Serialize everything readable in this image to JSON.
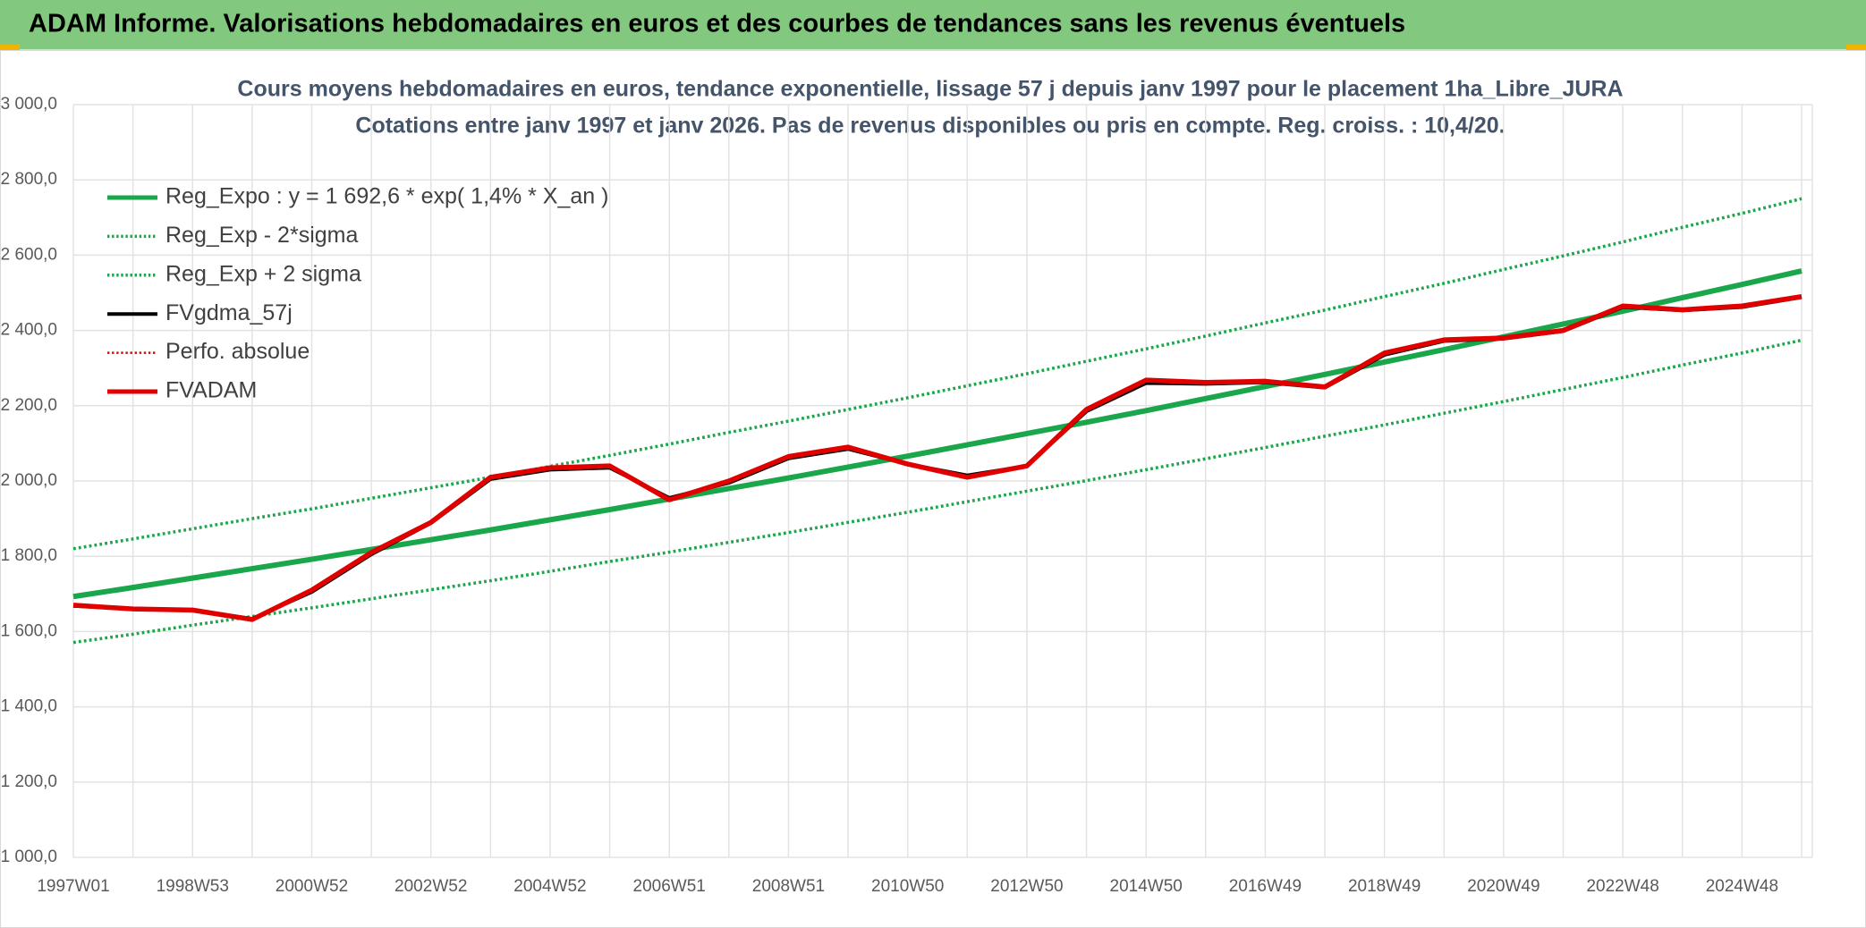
{
  "header": {
    "title": "ADAM Informe. Valorisations hebdomadaires en euros et des courbes de tendances sans les revenus éventuels"
  },
  "chart_data": {
    "type": "line",
    "title": "Cours moyens hebdomadaires en euros, tendance exponentielle, lissage 57 j depuis janv 1997 pour le placement 1ha_Libre_JURA",
    "subtitle": "Cotations entre janv 1997 et janv 2026. Pas de revenus disponibles ou pris en compte. Reg. croiss. : 10,4/20.",
    "categories": [
      "1997W01",
      null,
      "1998W53",
      null,
      "2000W52",
      null,
      "2002W52",
      null,
      "2004W52",
      null,
      "2006W51",
      null,
      "2008W51",
      null,
      "2010W50",
      null,
      "2012W50",
      null,
      "2014W50",
      null,
      "2016W49",
      null,
      "2018W49",
      null,
      "2020W49",
      null,
      "2022W48",
      null,
      "2024W48",
      null
    ],
    "series": [
      {
        "name": "Reg_Expo : y = 1 692,6 * exp( 1,4% *  X_an )",
        "color": "#1aa64a",
        "style": "solid",
        "values": [
          1693,
          1717,
          1742,
          1767,
          1792,
          1818,
          1844,
          1870,
          1897,
          1924,
          1952,
          1980,
          2008,
          2037,
          2066,
          2096,
          2126,
          2156,
          2187,
          2219,
          2251,
          2283,
          2316,
          2349,
          2383,
          2417,
          2451,
          2487,
          2522,
          2558
        ]
      },
      {
        "name": "Reg_Exp - 2*sigma",
        "color": "#1aa64a",
        "style": "dotted",
        "values": [
          1571,
          1593,
          1617,
          1640,
          1663,
          1687,
          1711,
          1735,
          1760,
          1786,
          1811,
          1837,
          1863,
          1890,
          1917,
          1945,
          1973,
          2001,
          2030,
          2059,
          2089,
          2119,
          2149,
          2180,
          2211,
          2243,
          2275,
          2308,
          2340,
          2374
        ]
      },
      {
        "name": "Reg_Exp + 2 sigma",
        "color": "#1aa64a",
        "style": "dotted",
        "values": [
          1820,
          1846,
          1873,
          1900,
          1926,
          1954,
          1982,
          2010,
          2039,
          2068,
          2098,
          2129,
          2159,
          2190,
          2221,
          2253,
          2285,
          2318,
          2351,
          2385,
          2420,
          2454,
          2490,
          2525,
          2562,
          2598,
          2635,
          2674,
          2711,
          2750
        ]
      },
      {
        "name": "FVgdma_57j",
        "color": "#000000",
        "style": "solid",
        "values": [
          1668,
          1660,
          1657,
          1634,
          1705,
          1805,
          1888,
          2005,
          2030,
          2035,
          1955,
          1995,
          2060,
          2085,
          2045,
          2015,
          2040,
          2185,
          2260,
          2258,
          2262,
          2248,
          2335,
          2372,
          2378,
          2398,
          2462,
          2453,
          2462,
          2488
        ]
      },
      {
        "name": "Perfo. absolue",
        "color": "#e00000",
        "style": "dotted",
        "values": [
          1670,
          1660,
          1657,
          1632,
          1710,
          1810,
          1890,
          2010,
          2035,
          2040,
          1950,
          2000,
          2065,
          2090,
          2045,
          2010,
          2040,
          2190,
          2268,
          2262,
          2265,
          2250,
          2340,
          2375,
          2380,
          2400,
          2465,
          2455,
          2465,
          2490
        ]
      },
      {
        "name": "FVADAM",
        "color": "#e00000",
        "style": "solid",
        "values": [
          1670,
          1660,
          1657,
          1632,
          1710,
          1810,
          1890,
          2010,
          2035,
          2040,
          1950,
          2000,
          2065,
          2090,
          2045,
          2010,
          2040,
          2190,
          2268,
          2262,
          2265,
          2250,
          2340,
          2375,
          2380,
          2400,
          2465,
          2455,
          2465,
          2490
        ]
      }
    ],
    "ylim": [
      1000,
      3000
    ],
    "yticks": [
      {
        "value": 1000,
        "label": "1 000,0"
      },
      {
        "value": 1200,
        "label": "1 200,0"
      },
      {
        "value": 1400,
        "label": "1 400,0"
      },
      {
        "value": 1600,
        "label": "1 600,0"
      },
      {
        "value": 1800,
        "label": "1 800,0"
      },
      {
        "value": 2000,
        "label": "2 000,0"
      },
      {
        "value": 2200,
        "label": "2 200,0"
      },
      {
        "value": 2400,
        "label": "2 400,0"
      },
      {
        "value": 2600,
        "label": "2 600,0"
      },
      {
        "value": 2800,
        "label": "2 800,0"
      },
      {
        "value": 3000,
        "label": "3 000,0"
      }
    ],
    "grid": true,
    "legend": "upper left"
  }
}
